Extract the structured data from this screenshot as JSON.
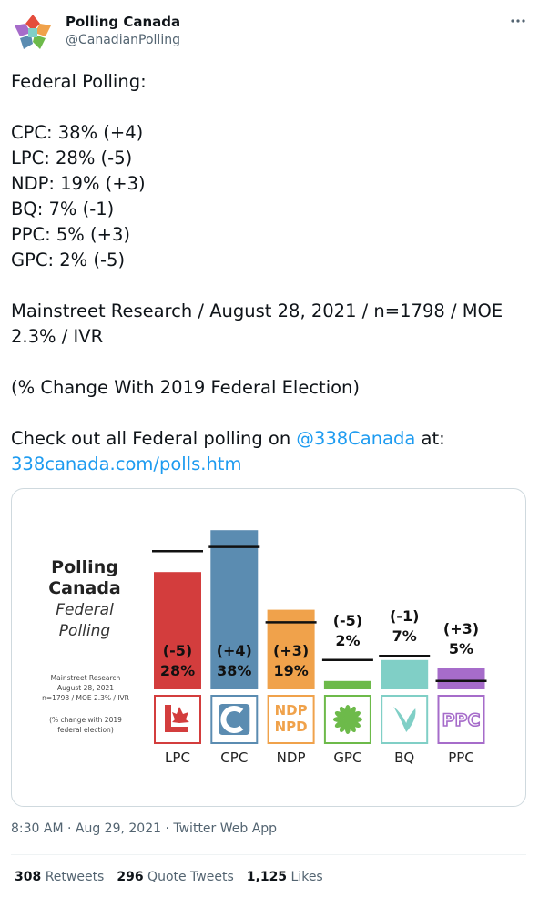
{
  "tweet": {
    "author": "Polling Canada",
    "handle": "@CanadianPolling",
    "paragraphs": [
      [
        "Federal Polling:"
      ],
      [
        "CPC: 38% (+4)",
        "LPC: 28% (-5)",
        "NDP: 19% (+3)",
        "BQ: 7% (-1)",
        "PPC: 5% (+3)",
        "GPC: 2% (-5)"
      ],
      [
        "Mainstreet Research / August 28, 2021 / n=1798 / MOE 2.3% / IVR"
      ],
      [
        "(% Change With 2019 Federal Election)"
      ]
    ],
    "cta": {
      "before": "Check out all Federal polling on",
      "mention": "@338Canada",
      "after": "at:",
      "link": "338canada.com/polls.htm"
    },
    "timestamp": "8:30 AM · Aug 29, 2021 · Twitter Web App",
    "stats": [
      {
        "count": "308",
        "label": "Retweets"
      },
      {
        "count": "296",
        "label": "Quote Tweets"
      },
      {
        "count": "1,125",
        "label": "Likes"
      }
    ]
  },
  "chart_data": {
    "type": "bar",
    "title": [
      "Polling",
      "Canada"
    ],
    "subtitle": [
      "Federal",
      "Polling"
    ],
    "notes": [
      "Mainstreet Research",
      "August 28, 2021",
      "n=1798 / MOE 2.3% / IVR",
      "(% change with 2019",
      "federal election)"
    ],
    "categories": [
      "LPC",
      "CPC",
      "NDP",
      "GPC",
      "BQ",
      "PPC"
    ],
    "values": [
      28,
      38,
      19,
      2,
      7,
      5
    ],
    "value_labels": [
      "28%",
      "38%",
      "19%",
      "2%",
      "7%",
      "5%"
    ],
    "change_labels": [
      "(-5)",
      "(+4)",
      "(+3)",
      "(-5)",
      "(-1)",
      "(+3)"
    ],
    "previous_values": [
      33,
      34,
      16,
      7,
      8,
      2
    ],
    "colors": [
      "#d33d3d",
      "#5b8cb1",
      "#f0a24b",
      "#6dba4a",
      "#80cfc6",
      "#a66cca"
    ],
    "logo_texts": {
      "ndp": [
        "NDP",
        "NPD"
      ],
      "ppc": "PPC"
    },
    "ylim": [
      0,
      40
    ]
  }
}
